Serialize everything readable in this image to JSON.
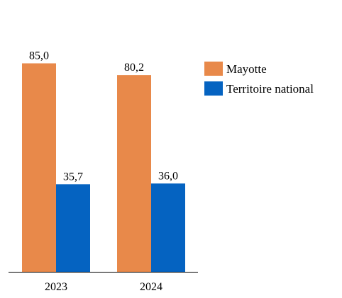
{
  "chart_data": {
    "type": "bar",
    "title": "",
    "xlabel": "",
    "ylabel": "",
    "categories": [
      "2023",
      "2024"
    ],
    "series": [
      {
        "name": "Mayotte",
        "values": [
          85.0,
          80.2
        ],
        "labels": [
          "85,0",
          "80,2"
        ],
        "color": "#E8894A"
      },
      {
        "name": "Territoire national",
        "values": [
          35.7,
          36.0
        ],
        "labels": [
          "35,7",
          "36,0"
        ],
        "color": "#0563C1"
      }
    ],
    "ylim": [
      0,
      100
    ],
    "grid": false,
    "legend_position": "top-right"
  }
}
